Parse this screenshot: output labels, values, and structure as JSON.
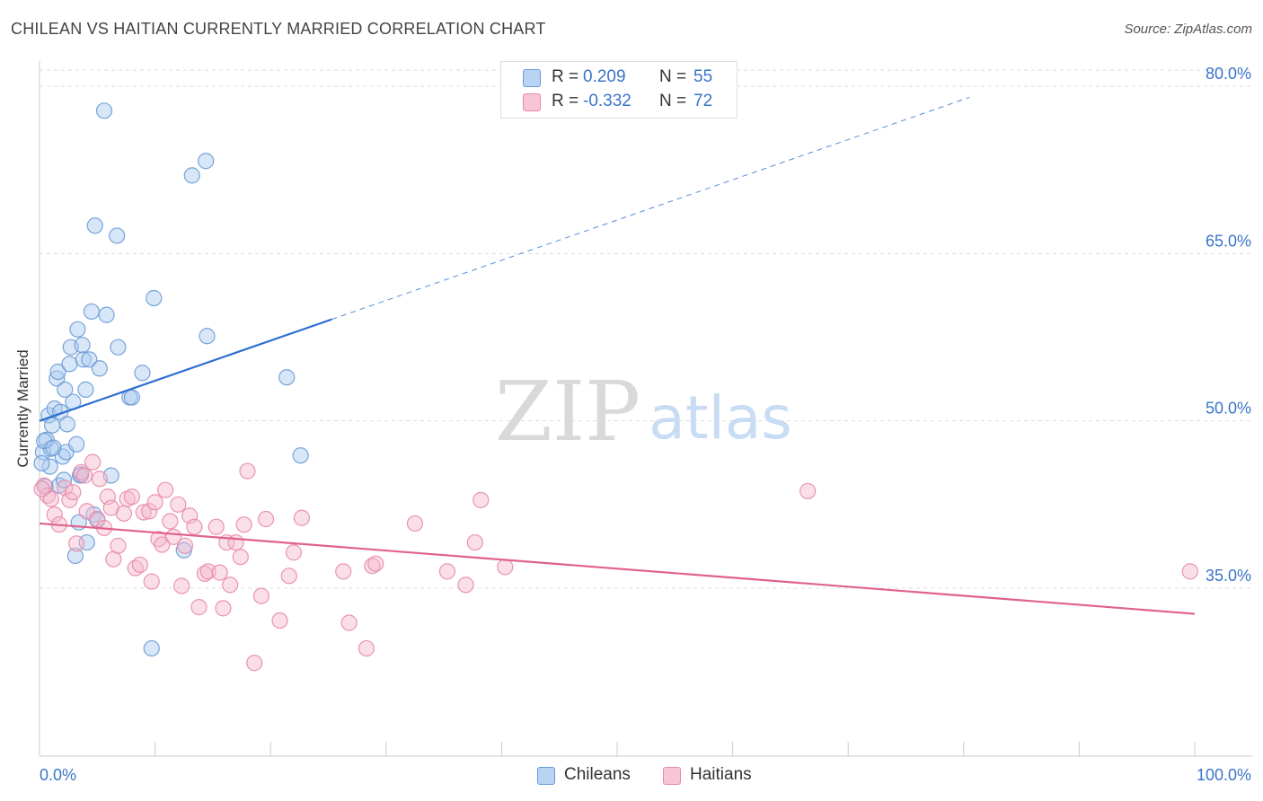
{
  "title": "CHILEAN VS HAITIAN CURRENTLY MARRIED CORRELATION CHART",
  "source": "Source: ZipAtlas.com",
  "watermark": {
    "zip": "ZIP",
    "atlas": "atlas"
  },
  "legend": {
    "series1": {
      "r_label": "R =",
      "r_value": "0.209",
      "n_label": "N =",
      "n_value": "55"
    },
    "series2": {
      "r_label": "R =",
      "r_value": "-0.332",
      "n_label": "N =",
      "n_value": "72"
    }
  },
  "bottom_legend": {
    "series1": "Chileans",
    "series2": "Haitians"
  },
  "colors": {
    "blue_fill": "#a9c9ef",
    "blue_stroke": "#6a9ad6",
    "blue_line": "#2c6fd1",
    "pink_fill": "#f5b8cb",
    "pink_stroke": "#e88aa8",
    "pink_line": "#e0628c",
    "tick_label": "#3a74c8",
    "grid": "#dddddd"
  },
  "chart_data": {
    "type": "scatter",
    "title": "CHILEAN VS HAITIAN CURRENTLY MARRIED CORRELATION CHART",
    "xlabel": "",
    "ylabel": "Currently Married",
    "xlim": [
      0,
      100
    ],
    "ylim": [
      20,
      82
    ],
    "x_tick_labels": [
      "0.0%",
      "100.0%"
    ],
    "y_ticks": [
      35,
      50,
      65,
      80
    ],
    "y_tick_labels": [
      "35.0%",
      "50.0%",
      "65.0%",
      "80.0%"
    ],
    "grid": true,
    "legend_position": "top-center",
    "series": [
      {
        "name": "Chileans",
        "r": 0.209,
        "n": 55,
        "trend": {
          "x0": 0,
          "y0": 50.0,
          "x1": 25.3,
          "y1": 59.1,
          "x_dash_end": 80.5,
          "y_dash_end": 79.0
        },
        "points": [
          [
            0.3,
            47.2
          ],
          [
            0.6,
            48.3
          ],
          [
            0.8,
            50.5
          ],
          [
            1.0,
            47.5
          ],
          [
            1.1,
            49.6
          ],
          [
            1.3,
            51.1
          ],
          [
            1.5,
            53.8
          ],
          [
            1.6,
            54.4
          ],
          [
            1.8,
            50.8
          ],
          [
            2.0,
            46.8
          ],
          [
            2.2,
            52.8
          ],
          [
            2.3,
            47.2
          ],
          [
            2.4,
            49.7
          ],
          [
            2.6,
            55.1
          ],
          [
            2.7,
            56.6
          ],
          [
            2.9,
            51.7
          ],
          [
            3.1,
            37.9
          ],
          [
            3.2,
            47.9
          ],
          [
            3.3,
            58.2
          ],
          [
            3.4,
            40.9
          ],
          [
            3.5,
            45.1
          ],
          [
            3.7,
            56.8
          ],
          [
            3.8,
            55.5
          ],
          [
            4.0,
            52.8
          ],
          [
            4.1,
            39.1
          ],
          [
            4.3,
            55.5
          ],
          [
            4.5,
            59.8
          ],
          [
            4.7,
            41.6
          ],
          [
            4.8,
            67.5
          ],
          [
            5.0,
            41.1
          ],
          [
            5.2,
            54.7
          ],
          [
            5.6,
            77.8
          ],
          [
            5.8,
            59.5
          ],
          [
            6.2,
            45.1
          ],
          [
            6.7,
            66.6
          ],
          [
            6.8,
            56.6
          ],
          [
            7.8,
            52.1
          ],
          [
            8.0,
            52.1
          ],
          [
            8.9,
            54.3
          ],
          [
            9.7,
            29.6
          ],
          [
            9.9,
            61.0
          ],
          [
            12.5,
            38.4
          ],
          [
            13.2,
            72.0
          ],
          [
            14.4,
            73.3
          ],
          [
            14.5,
            57.6
          ],
          [
            21.4,
            53.9
          ],
          [
            22.6,
            46.9
          ],
          [
            0.4,
            48.2
          ],
          [
            0.9,
            45.9
          ],
          [
            1.7,
            44.2
          ],
          [
            2.1,
            44.7
          ],
          [
            3.6,
            45.2
          ],
          [
            0.2,
            46.2
          ],
          [
            1.2,
            47.6
          ],
          [
            0.5,
            44.1
          ]
        ]
      },
      {
        "name": "Haitians",
        "r": -0.332,
        "n": 72,
        "trend": {
          "x0": 0,
          "y0": 40.8,
          "x1": 100,
          "y1": 32.7
        },
        "points": [
          [
            0.4,
            44.2
          ],
          [
            0.7,
            43.3
          ],
          [
            1.0,
            43.0
          ],
          [
            1.3,
            41.6
          ],
          [
            1.7,
            40.7
          ],
          [
            2.2,
            44.0
          ],
          [
            2.6,
            42.9
          ],
          [
            2.9,
            43.6
          ],
          [
            3.2,
            39.0
          ],
          [
            3.6,
            45.4
          ],
          [
            3.9,
            45.1
          ],
          [
            4.1,
            41.9
          ],
          [
            4.6,
            46.3
          ],
          [
            5.0,
            41.2
          ],
          [
            5.2,
            44.8
          ],
          [
            5.6,
            40.4
          ],
          [
            5.9,
            43.2
          ],
          [
            6.2,
            42.2
          ],
          [
            6.4,
            37.6
          ],
          [
            6.8,
            38.8
          ],
          [
            7.3,
            41.7
          ],
          [
            7.6,
            43.0
          ],
          [
            8.0,
            43.2
          ],
          [
            8.3,
            36.8
          ],
          [
            8.7,
            37.1
          ],
          [
            9.0,
            41.8
          ],
          [
            9.5,
            41.9
          ],
          [
            9.7,
            35.6
          ],
          [
            10.0,
            42.7
          ],
          [
            10.3,
            39.4
          ],
          [
            10.6,
            38.9
          ],
          [
            10.9,
            43.8
          ],
          [
            11.3,
            41.0
          ],
          [
            11.6,
            39.6
          ],
          [
            12.0,
            42.5
          ],
          [
            12.3,
            35.2
          ],
          [
            12.6,
            38.8
          ],
          [
            13.0,
            41.5
          ],
          [
            13.4,
            40.5
          ],
          [
            13.8,
            33.3
          ],
          [
            14.3,
            36.3
          ],
          [
            14.6,
            36.5
          ],
          [
            15.3,
            40.5
          ],
          [
            15.6,
            36.4
          ],
          [
            15.9,
            33.2
          ],
          [
            16.2,
            39.1
          ],
          [
            16.5,
            35.3
          ],
          [
            17.0,
            39.1
          ],
          [
            17.4,
            37.8
          ],
          [
            17.7,
            40.7
          ],
          [
            18.0,
            45.5
          ],
          [
            18.6,
            28.3
          ],
          [
            19.2,
            34.3
          ],
          [
            19.6,
            41.2
          ],
          [
            20.8,
            32.1
          ],
          [
            21.6,
            36.1
          ],
          [
            22.0,
            38.2
          ],
          [
            22.7,
            41.3
          ],
          [
            26.3,
            36.5
          ],
          [
            26.8,
            31.9
          ],
          [
            28.3,
            29.6
          ],
          [
            28.8,
            37.0
          ],
          [
            29.1,
            37.2
          ],
          [
            32.5,
            40.8
          ],
          [
            35.3,
            36.5
          ],
          [
            36.9,
            35.3
          ],
          [
            37.7,
            39.1
          ],
          [
            38.2,
            42.9
          ],
          [
            40.3,
            36.9
          ],
          [
            66.5,
            43.7
          ],
          [
            99.6,
            36.5
          ],
          [
            0.2,
            43.9
          ]
        ]
      }
    ]
  }
}
